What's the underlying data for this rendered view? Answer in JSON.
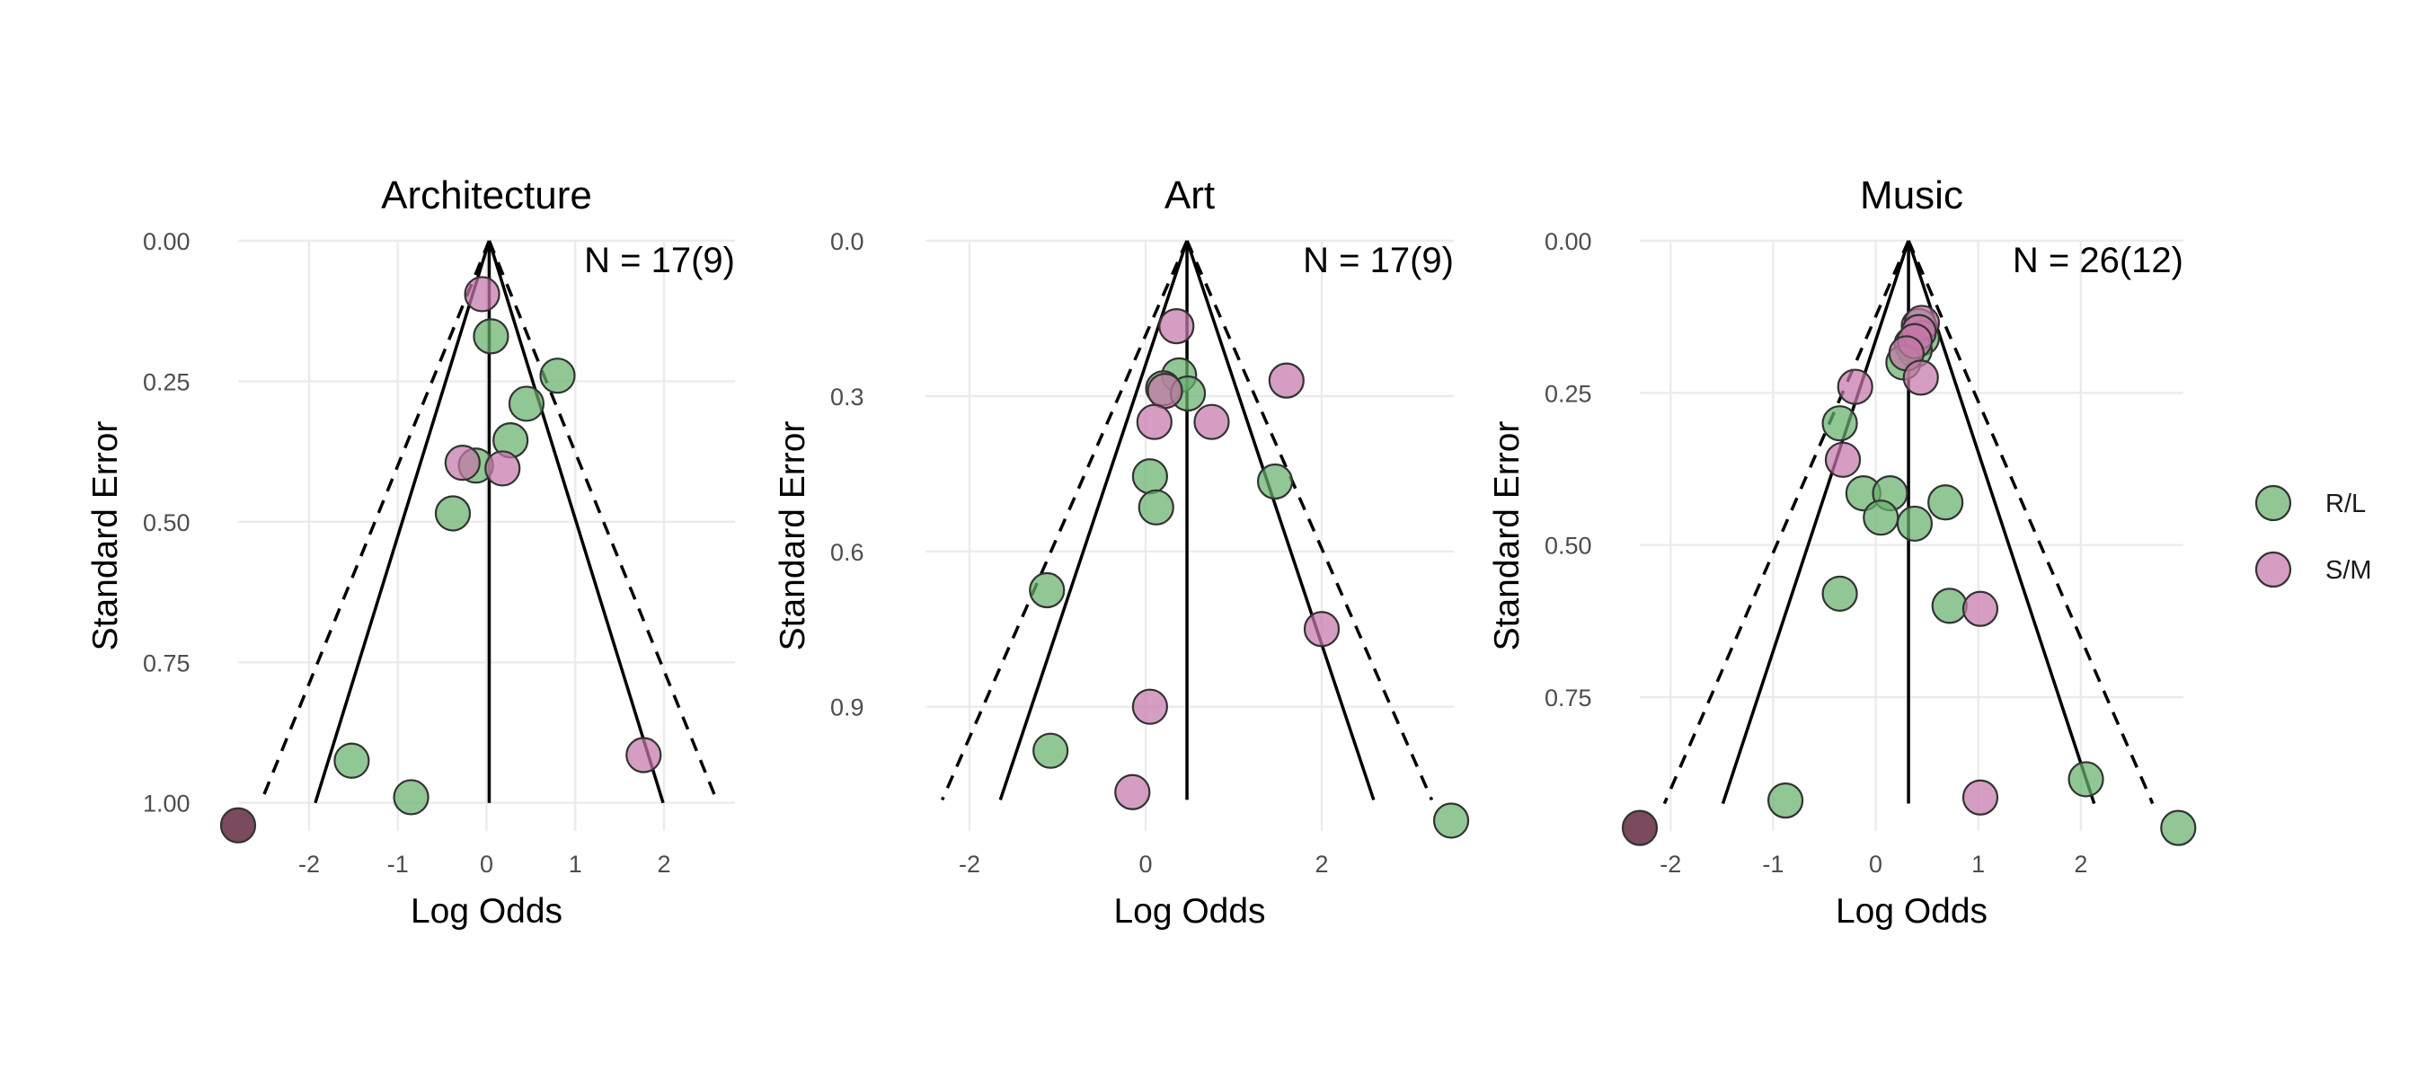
{
  "legend": {
    "items": [
      {
        "label": "R/L",
        "color": "#66b26c"
      },
      {
        "label": "S/M",
        "color": "#c677aa"
      }
    ]
  },
  "chart_data": [
    {
      "type": "scatter",
      "title": "Architecture",
      "n_label": "N = 17(9)",
      "xlabel": "Log Odds",
      "ylabel": "Standard Error",
      "xlim": [
        -2.8,
        2.8
      ],
      "ylim": [
        1.05,
        0.0
      ],
      "y_reversed": true,
      "xticks": [
        -2,
        -1,
        0,
        1,
        2
      ],
      "yticks": [
        0.0,
        0.25,
        0.5,
        0.75,
        1.0
      ],
      "ytick_labels": [
        "0.00",
        "0.25",
        "0.50",
        "0.75",
        "1.00"
      ],
      "summary_estimate": 0.03,
      "funnel": {
        "apex_se": 0.0,
        "base_se": 1.0,
        "solid_half_width_at_base": 1.96,
        "dashed_half_width_at_base": 2.576
      },
      "series": [
        {
          "name": "R/L",
          "points": [
            {
              "x": 0.05,
              "y": 0.17
            },
            {
              "x": 0.8,
              "y": 0.24
            },
            {
              "x": 0.45,
              "y": 0.29
            },
            {
              "x": 0.27,
              "y": 0.355
            },
            {
              "x": -0.12,
              "y": 0.4
            },
            {
              "x": -0.38,
              "y": 0.485
            },
            {
              "x": -1.52,
              "y": 0.925
            },
            {
              "x": -0.85,
              "y": 0.99
            }
          ]
        },
        {
          "name": "S/M",
          "points": [
            {
              "x": -0.05,
              "y": 0.095
            },
            {
              "x": -0.27,
              "y": 0.395
            },
            {
              "x": 0.18,
              "y": 0.405
            },
            {
              "x": 1.77,
              "y": 0.915
            }
          ]
        },
        {
          "name": "",
          "points": [
            {
              "x": -2.8,
              "y": 1.04
            }
          ],
          "color": "#7b4a5c"
        }
      ]
    },
    {
      "type": "scatter",
      "title": "Art",
      "n_label": "N = 17(9)",
      "xlabel": "Log Odds",
      "ylabel": "Standard Error",
      "xlim": [
        -2.5,
        3.5
      ],
      "ylim": [
        1.14,
        0.0
      ],
      "y_reversed": true,
      "xticks": [
        -2,
        0,
        2
      ],
      "yticks": [
        0.0,
        0.3,
        0.6,
        0.9
      ],
      "ytick_labels": [
        "0.0",
        "0.3",
        "0.6",
        "0.9"
      ],
      "summary_estimate": 0.47,
      "funnel": {
        "apex_se": 0.0,
        "base_se": 1.08,
        "solid_half_width_at_base": 2.12,
        "dashed_half_width_at_base": 2.78
      },
      "series": [
        {
          "name": "R/L",
          "points": [
            {
              "x": 0.38,
              "y": 0.26
            },
            {
              "x": 0.2,
              "y": 0.285
            },
            {
              "x": 0.48,
              "y": 0.295
            },
            {
              "x": 1.47,
              "y": 0.465
            },
            {
              "x": 0.05,
              "y": 0.455
            },
            {
              "x": 0.12,
              "y": 0.515
            },
            {
              "x": -1.12,
              "y": 0.675
            },
            {
              "x": -1.08,
              "y": 0.985
            },
            {
              "x": 3.47,
              "y": 1.12
            }
          ]
        },
        {
          "name": "S/M",
          "points": [
            {
              "x": 0.35,
              "y": 0.165
            },
            {
              "x": 1.6,
              "y": 0.27
            },
            {
              "x": 0.22,
              "y": 0.29
            },
            {
              "x": 0.1,
              "y": 0.35
            },
            {
              "x": 0.75,
              "y": 0.35
            },
            {
              "x": 2.0,
              "y": 0.75
            },
            {
              "x": 0.05,
              "y": 0.9
            },
            {
              "x": -0.15,
              "y": 1.065
            }
          ]
        }
      ]
    },
    {
      "type": "scatter",
      "title": "Music",
      "n_label": "N = 26(12)",
      "xlabel": "Log Odds",
      "ylabel": "Standard Error",
      "xlim": [
        -2.3,
        3.0
      ],
      "ylim": [
        0.97,
        0.0
      ],
      "y_reversed": true,
      "xticks": [
        -2,
        -1,
        0,
        1,
        2
      ],
      "yticks": [
        0.0,
        0.25,
        0.5,
        0.75
      ],
      "ytick_labels": [
        "0.00",
        "0.25",
        "0.50",
        "0.75"
      ],
      "summary_estimate": 0.32,
      "funnel": {
        "apex_se": 0.0,
        "base_se": 0.925,
        "solid_half_width_at_base": 1.81,
        "dashed_half_width_at_base": 2.38
      },
      "series": [
        {
          "name": "R/L",
          "points": [
            {
              "x": 0.42,
              "y": 0.14
            },
            {
              "x": 0.45,
              "y": 0.16
            },
            {
              "x": 0.35,
              "y": 0.17
            },
            {
              "x": 0.38,
              "y": 0.18
            },
            {
              "x": 0.27,
              "y": 0.2
            },
            {
              "x": -0.35,
              "y": 0.3
            },
            {
              "x": -0.12,
              "y": 0.415
            },
            {
              "x": 0.14,
              "y": 0.415
            },
            {
              "x": 0.68,
              "y": 0.43
            },
            {
              "x": 0.05,
              "y": 0.455
            },
            {
              "x": 0.38,
              "y": 0.465
            },
            {
              "x": -0.35,
              "y": 0.58
            },
            {
              "x": 0.72,
              "y": 0.6
            },
            {
              "x": -0.88,
              "y": 0.92
            },
            {
              "x": 2.05,
              "y": 0.885
            },
            {
              "x": 2.95,
              "y": 0.965
            }
          ]
        },
        {
          "name": "S/M",
          "points": [
            {
              "x": 0.45,
              "y": 0.135
            },
            {
              "x": 0.42,
              "y": 0.15
            },
            {
              "x": 0.38,
              "y": 0.165
            },
            {
              "x": 0.3,
              "y": 0.185
            },
            {
              "x": -0.2,
              "y": 0.24
            },
            {
              "x": 0.44,
              "y": 0.225
            },
            {
              "x": -0.32,
              "y": 0.36
            },
            {
              "x": 1.02,
              "y": 0.605
            },
            {
              "x": 1.02,
              "y": 0.915
            }
          ]
        },
        {
          "name": "",
          "points": [
            {
              "x": -2.3,
              "y": 0.965
            }
          ],
          "color": "#7b4a5c"
        }
      ]
    }
  ]
}
